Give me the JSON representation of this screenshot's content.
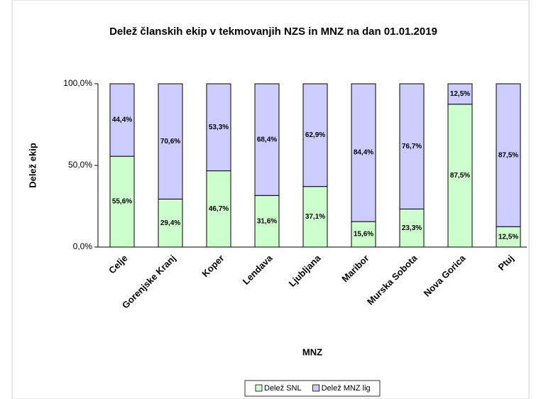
{
  "chart_data": {
    "type": "stacked_bar",
    "title": "Delež članskih ekip v tekmovanjih NZS in MNZ na dan 01.01.2019",
    "x_label": "MNZ",
    "y_label": "Delež ekip",
    "categories": [
      "Celje",
      "Gorenjske Kranj",
      "Koper",
      "Lendava",
      "Ljubljana",
      "Maribor",
      "Murska Sobota",
      "Nova Gorica",
      "Ptuj"
    ],
    "series": [
      {
        "name": "Delež SNL",
        "color": "#ccffcc",
        "values": [
          55.6,
          29.4,
          46.7,
          31.6,
          37.1,
          15.6,
          23.3,
          87.5,
          12.5
        ],
        "value_labels": [
          "55,6%",
          "29,4%",
          "46,7%",
          "31,6%",
          "37,1%",
          "15,6%",
          "23,3%",
          "87,5%",
          "12,5%"
        ]
      },
      {
        "name": "Delež MNZ lig",
        "color": "#ccccff",
        "values": [
          44.4,
          70.6,
          53.3,
          68.4,
          62.9,
          84.4,
          76.7,
          12.5,
          87.5
        ],
        "value_labels": [
          "44,4%",
          "70,6%",
          "53,3%",
          "68,4%",
          "62,9%",
          "84,4%",
          "76,7%",
          "12,5%",
          "87,5%"
        ]
      }
    ],
    "ylim": [
      0,
      100
    ],
    "yticks": [
      {
        "value": 0,
        "label": "0,0%"
      },
      {
        "value": 50,
        "label": "50,0%"
      },
      {
        "value": 100,
        "label": "100,0%"
      }
    ],
    "legend": "bottom"
  }
}
